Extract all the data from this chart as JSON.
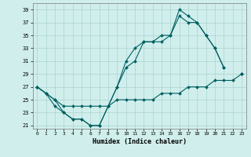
{
  "xlabel": "Humidex (Indice chaleur)",
  "background_color": "#d0eeec",
  "grid_color": "#aad4d0",
  "line_color": "#006060",
  "xlim": [
    -0.5,
    23.5
  ],
  "ylim": [
    20.5,
    40.0
  ],
  "xticks": [
    0,
    1,
    2,
    3,
    4,
    5,
    6,
    7,
    8,
    9,
    10,
    11,
    12,
    13,
    14,
    15,
    16,
    17,
    18,
    19,
    20,
    21,
    22,
    23
  ],
  "yticks": [
    21,
    23,
    25,
    27,
    29,
    31,
    33,
    35,
    37,
    39
  ],
  "line1_x": [
    0,
    1,
    2,
    3,
    4,
    5,
    6,
    7,
    8,
    9,
    10,
    11,
    12,
    13,
    14,
    15,
    16,
    17,
    18,
    19,
    20,
    21,
    22,
    23
  ],
  "line1_y": [
    27,
    26,
    25,
    24,
    24,
    24,
    24,
    24,
    24,
    25,
    25,
    25,
    25,
    25,
    26,
    26,
    26,
    27,
    27,
    27,
    28,
    28,
    28,
    29
  ],
  "line2_x": [
    0,
    1,
    2,
    3,
    4,
    5,
    6,
    7,
    8,
    9,
    10,
    11,
    12,
    13,
    14,
    15,
    16,
    17,
    18,
    19,
    20,
    21,
    22,
    23
  ],
  "line2_y": [
    27,
    26,
    25,
    23,
    22,
    22,
    21,
    21,
    24,
    27,
    31,
    33,
    34,
    34,
    35,
    35,
    38,
    37,
    37,
    35,
    33,
    30,
    null,
    29
  ],
  "line3_x": [
    0,
    1,
    2,
    3,
    4,
    5,
    6,
    7,
    8,
    9,
    10,
    11,
    12,
    13,
    14,
    15,
    16,
    17,
    18,
    19,
    20,
    21,
    22,
    23
  ],
  "line3_y": [
    27,
    26,
    24,
    23,
    22,
    22,
    21,
    21,
    24,
    27,
    30,
    31,
    34,
    34,
    34,
    35,
    39,
    38,
    37,
    35,
    33,
    30,
    null,
    29
  ]
}
